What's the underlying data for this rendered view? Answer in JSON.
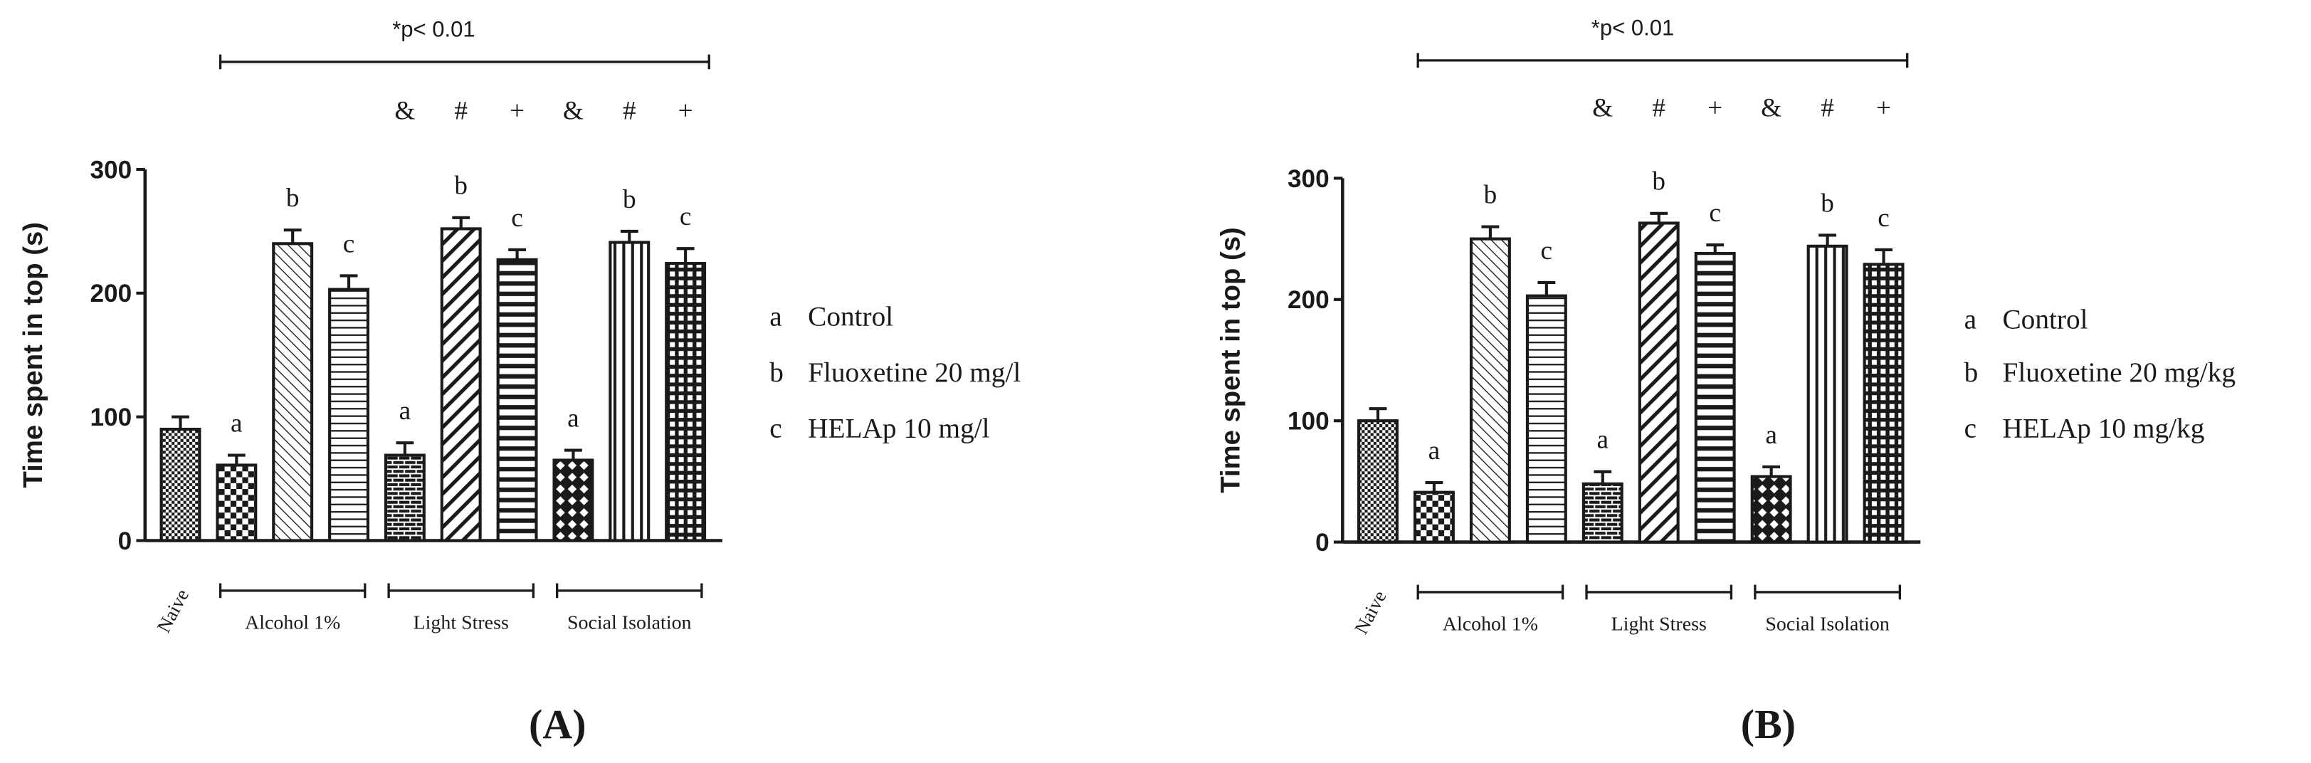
{
  "figure": {
    "colors": {
      "ink": "#1a1a1a",
      "background": "#ffffff"
    },
    "group_labels": [
      "Naive",
      "Alcohol 1%",
      "Light Stress",
      "Social Isolation"
    ]
  },
  "chart_data": [
    {
      "type": "bar",
      "panel_label": "(A)",
      "ylabel": "Time spent in top (s)",
      "ylim": [
        0,
        300
      ],
      "yticks": [
        "0",
        "100",
        "200",
        "300"
      ],
      "significance": "*p< 0.01",
      "group_labels": [
        "Naive",
        "Alcohol 1%",
        "Light Stress",
        "Social Isolation"
      ],
      "legend": [
        {
          "key": "a",
          "text": "Control"
        },
        {
          "key": "b",
          "text": "Fluoxetine  20 mg/l"
        },
        {
          "key": "c",
          "text": "HELAp 10 mg/l"
        }
      ],
      "categories": [
        "Naive",
        "Alcohol 1% control",
        "Alcohol 1% fluoxetine",
        "Alcohol 1% HELAp",
        "Light Stress control",
        "Light Stress fluoxetine",
        "Light Stress HELAp",
        "Social Isolation control",
        "Social Isolation fluoxetine",
        "Social Isolation HELAp"
      ],
      "values": [
        90,
        61,
        240,
        203,
        69,
        252,
        227,
        65,
        241,
        224
      ],
      "errors": [
        10,
        8,
        11,
        11,
        10,
        9,
        8,
        8,
        9,
        12
      ],
      "patterns": [
        "dots",
        "check",
        "diag-thin",
        "hlines",
        "brick",
        "diag-thick",
        "hlines-bold",
        "diamond",
        "vlines",
        "grid"
      ],
      "bar_labels": [
        "",
        "a",
        "b",
        "c",
        "a",
        "b",
        "c",
        "a",
        "b",
        "c"
      ],
      "symbols": [
        "",
        "",
        "",
        "",
        "&",
        "#",
        "+",
        "&",
        "#",
        "+"
      ]
    },
    {
      "type": "bar",
      "panel_label": "(B)",
      "ylabel": "Time spent in top (s)",
      "ylim": [
        0,
        300
      ],
      "yticks": [
        "0",
        "100",
        "200",
        "300"
      ],
      "significance": "*p< 0.01",
      "group_labels": [
        "Naive",
        "Alcohol 1%",
        "Light Stress",
        "Social Isolation"
      ],
      "legend": [
        {
          "key": "a",
          "text": "Control"
        },
        {
          "key": "b",
          "text": "Fluoxetine  20 mg/kg"
        },
        {
          "key": "c",
          "text": "HELAp 10 mg/kg"
        }
      ],
      "categories": [
        "Naive",
        "Alcohol 1% control",
        "Alcohol 1% fluoxetine",
        "Alcohol 1% HELAp",
        "Light Stress control",
        "Light Stress fluoxetine",
        "Light Stress HELAp",
        "Social Isolation control",
        "Social Isolation fluoxetine",
        "Social Isolation HELAp"
      ],
      "values": [
        100,
        41,
        250,
        203,
        48,
        263,
        238,
        54,
        244,
        229
      ],
      "errors": [
        10,
        8,
        10,
        11,
        10,
        8,
        7,
        8,
        9,
        12
      ],
      "patterns": [
        "dots",
        "check",
        "diag-thin",
        "hlines",
        "brick",
        "diag-thick",
        "hlines-bold",
        "diamond",
        "vlines",
        "grid"
      ],
      "bar_labels": [
        "",
        "a",
        "b",
        "c",
        "a",
        "b",
        "c",
        "a",
        "b",
        "c"
      ],
      "symbols": [
        "",
        "",
        "",
        "",
        "&",
        "#",
        "+",
        "&",
        "#",
        "+"
      ]
    }
  ]
}
